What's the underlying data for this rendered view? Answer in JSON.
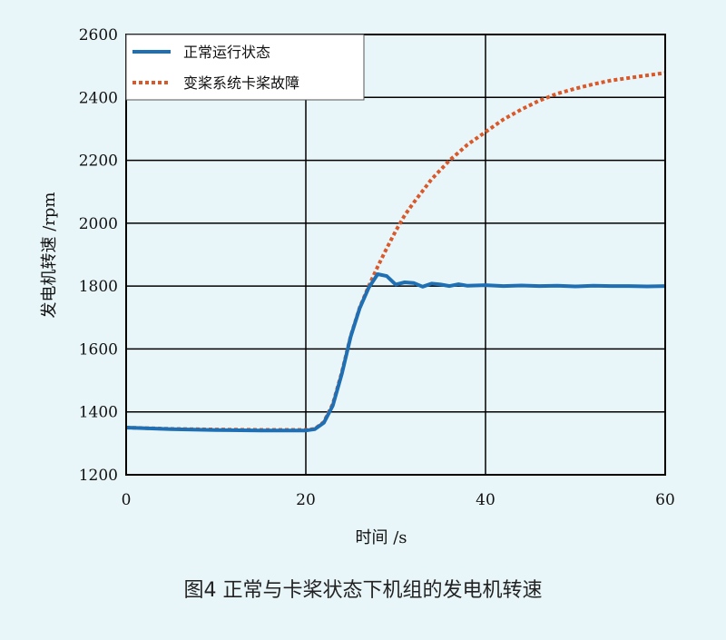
{
  "caption": "图4 正常与卡桨状态下机组的发电机转速",
  "chart_data": {
    "type": "line",
    "xlabel": "时间 /s",
    "ylabel": "发电机转速 /rpm",
    "xlim": [
      0,
      60
    ],
    "ylim": [
      1200,
      2600
    ],
    "xticks": [
      0,
      20,
      40,
      60
    ],
    "yticks": [
      1200,
      1400,
      1600,
      1800,
      2000,
      2200,
      2400,
      2600
    ],
    "grid": true,
    "legend_position": "top-left",
    "series": [
      {
        "name": "正常运行状态",
        "color": "#1f6fb4",
        "style": "solid",
        "x": [
          0,
          5,
          10,
          15,
          20,
          21,
          22,
          23,
          24,
          25,
          26,
          27,
          28,
          29,
          30,
          31,
          32,
          33,
          34,
          35,
          36,
          37,
          38,
          40,
          42,
          44,
          46,
          48,
          50,
          52,
          54,
          56,
          58,
          60
        ],
        "y": [
          1350,
          1345,
          1342,
          1341,
          1341,
          1345,
          1365,
          1420,
          1520,
          1640,
          1730,
          1795,
          1838,
          1832,
          1805,
          1812,
          1810,
          1798,
          1808,
          1805,
          1800,
          1806,
          1801,
          1803,
          1800,
          1802,
          1800,
          1801,
          1799,
          1801,
          1800,
          1800,
          1799,
          1800
        ]
      },
      {
        "name": "变桨系统卡桨故障",
        "color": "#d9592a",
        "style": "dotted",
        "x": [
          0,
          5,
          10,
          15,
          20,
          21,
          22,
          23,
          24,
          25,
          26,
          27,
          28,
          29,
          30,
          31,
          32,
          34,
          36,
          38,
          40,
          42,
          44,
          46,
          48,
          50,
          52,
          54,
          56,
          58,
          60
        ],
        "y": [
          1350,
          1346,
          1344,
          1343,
          1343,
          1346,
          1368,
          1425,
          1525,
          1642,
          1732,
          1800,
          1862,
          1920,
          1975,
          2025,
          2065,
          2140,
          2200,
          2250,
          2290,
          2330,
          2362,
          2390,
          2412,
          2428,
          2442,
          2454,
          2462,
          2470,
          2478
        ]
      }
    ]
  }
}
